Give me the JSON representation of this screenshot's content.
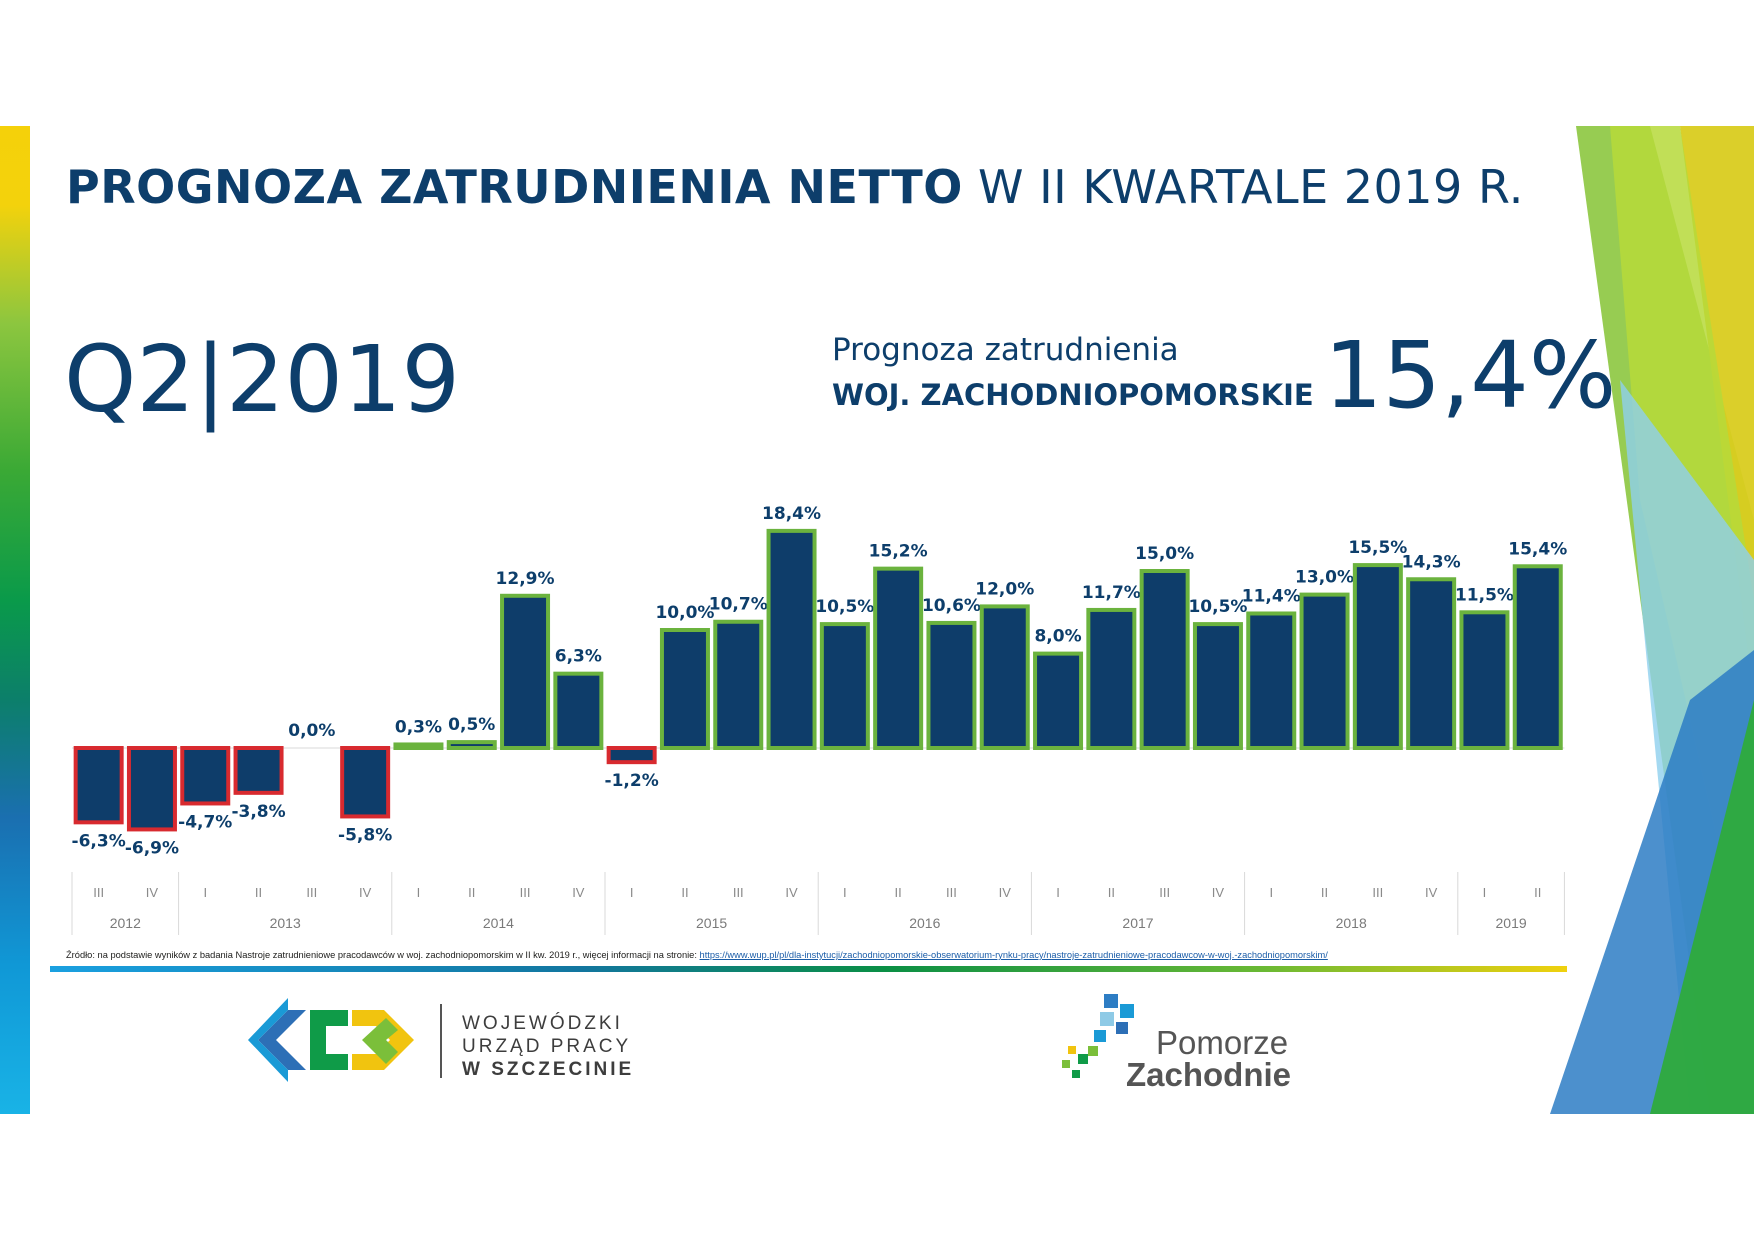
{
  "title": {
    "bold": "PROGNOZA ZATRUDNIENIA NETTO",
    "rest": " W II KWARTALE 2019 R."
  },
  "period": "Q2|2019",
  "forecast": {
    "label": "Prognoza zatrudnienia",
    "region": "WOJ. ZACHODNIOPOMORSKIE",
    "value": "15,4%"
  },
  "source": {
    "text": "Źródło: na podstawie wyników z badania Nastroje zatrudnieniowe pracodawców w woj. zachodniopomorskim w II kw. 2019 r., więcej informacji na stronie: ",
    "link": "https://www.wup.pl/pl/dla-instytucji/zachodniopomorskie-obserwatorium-rynku-pracy/nastroje-zatrudnieniowe-pracodawcow-w-woj.-zachodniopomorskim/"
  },
  "logos": {
    "wup": [
      "WOJEWÓDZKI",
      "URZĄD PRACY",
      "W  SZCZECINIE"
    ],
    "pz": [
      "Pomorze",
      "Zachodnie"
    ]
  },
  "colors": {
    "bar_fill": "#0e3d6a",
    "positive_border": "#6bb33e",
    "negative_border": "#d82a2f",
    "text": "#0d3e6b"
  },
  "chart_data": {
    "type": "bar",
    "x": [
      "III",
      "IV",
      "I",
      "II",
      "III",
      "IV",
      "I",
      "II",
      "III",
      "IV",
      "I",
      "II",
      "III",
      "IV",
      "I",
      "II",
      "III",
      "IV",
      "I",
      "II",
      "III",
      "IV",
      "I",
      "II",
      "III",
      "IV",
      "I",
      "II"
    ],
    "values": [
      -6.3,
      -6.9,
      -4.7,
      -3.8,
      0.0,
      -5.8,
      0.3,
      0.5,
      12.9,
      6.3,
      -1.2,
      10.0,
      10.7,
      18.4,
      10.5,
      15.2,
      10.6,
      12.0,
      8.0,
      11.7,
      15.0,
      10.5,
      11.4,
      13.0,
      15.5,
      14.3,
      11.5,
      15.4
    ],
    "labels": [
      "-6,3%",
      "-6,9%",
      "-4,7%",
      "-3,8%",
      "0,0%",
      "-5,8%",
      "0,3%",
      "0,5%",
      "12,9%",
      "6,3%",
      "-1,2%",
      "10,0%",
      "10,7%",
      "18,4%",
      "10,5%",
      "15,2%",
      "10,6%",
      "12,0%",
      "8,0%",
      "11,7%",
      "15,0%",
      "10,5%",
      "11,4%",
      "13,0%",
      "15,5%",
      "14,3%",
      "11,5%",
      "15,4%"
    ],
    "years": [
      {
        "label": "2012",
        "count": 2
      },
      {
        "label": "2013",
        "count": 4
      },
      {
        "label": "2014",
        "count": 4
      },
      {
        "label": "2015",
        "count": 4
      },
      {
        "label": "2016",
        "count": 4
      },
      {
        "label": "2017",
        "count": 4
      },
      {
        "label": "2018",
        "count": 4
      },
      {
        "label": "2019",
        "count": 2
      }
    ],
    "grid": false
  }
}
